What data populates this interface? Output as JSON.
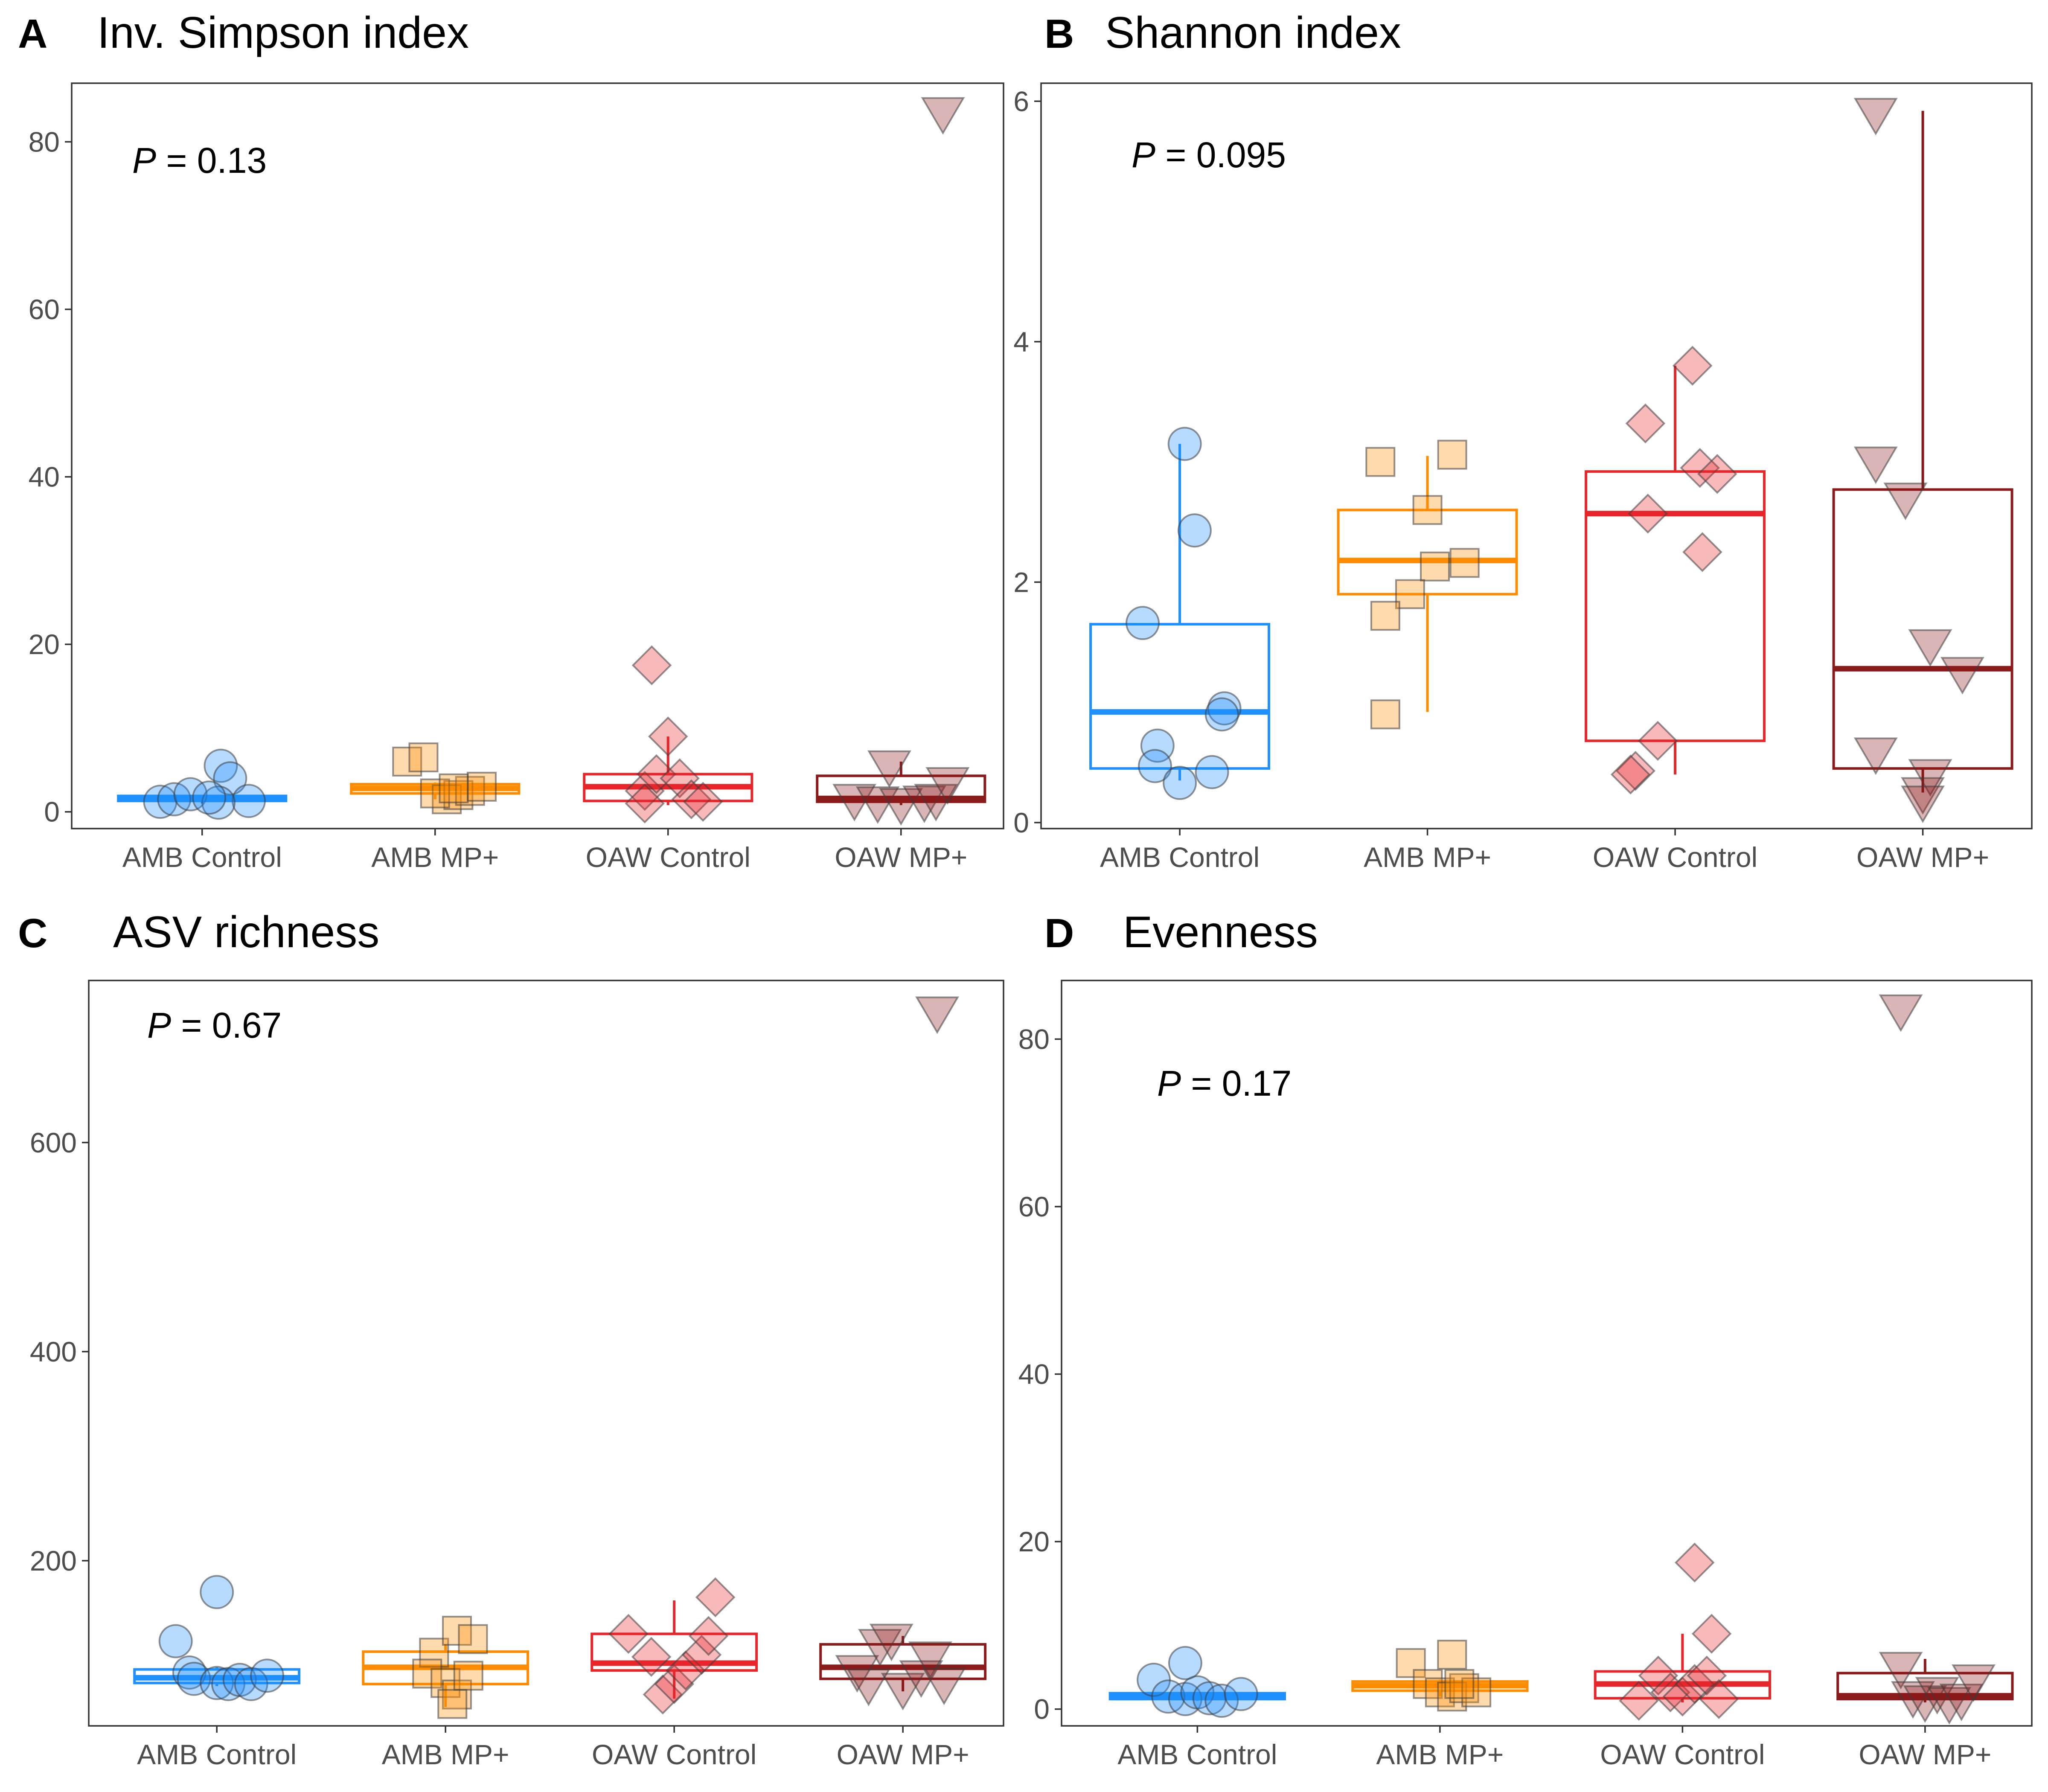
{
  "panels": [
    {
      "letter": "A",
      "title": "Inv. Simpson index"
    },
    {
      "letter": "B",
      "title": "Shannon index"
    },
    {
      "letter": "C",
      "title": "ASV richness"
    },
    {
      "letter": "D",
      "title": "Evenness"
    }
  ],
  "chart_data": [
    {
      "panel": "A",
      "type": "box",
      "title": "Inv. Simpson index",
      "categories": [
        "AMB Control",
        "AMB MP+",
        "OAW Control",
        "OAW MP+"
      ],
      "colors": [
        "#1e90ff",
        "#ff8c00",
        "#e8262a",
        "#8b1a1a"
      ],
      "point_shapes": [
        "circle",
        "square",
        "diamond",
        "triangle-down"
      ],
      "ylim": [
        -2,
        87
      ],
      "yticks": [
        0,
        20,
        40,
        60,
        80
      ],
      "annotation": {
        "P": "P",
        "text": " = 0.13"
      },
      "boxes": [
        {
          "q1": 1.3,
          "median": 1.6,
          "q3": 1.9,
          "lo": 1.0,
          "hi": 2.0
        },
        {
          "q1": 2.2,
          "median": 2.8,
          "q3": 3.3,
          "lo": 1.5,
          "hi": 3.5
        },
        {
          "q1": 1.3,
          "median": 3.0,
          "q3": 4.5,
          "lo": 0.8,
          "hi": 9.0
        },
        {
          "q1": 1.2,
          "median": 1.6,
          "q3": 4.3,
          "lo": 0.8,
          "hi": 6.0
        }
      ],
      "points": [
        [
          [
            -0.18,
            1.2
          ],
          [
            -0.12,
            1.5
          ],
          [
            -0.05,
            2.1
          ],
          [
            0.08,
            5.5
          ],
          [
            0.12,
            4.0
          ],
          [
            0.2,
            1.3
          ],
          [
            0.07,
            1.1
          ],
          [
            0.03,
            1.7
          ]
        ],
        [
          [
            -0.12,
            6.0
          ],
          [
            -0.05,
            6.5
          ],
          [
            0.05,
            1.5
          ],
          [
            0.1,
            2.0
          ],
          [
            0.15,
            2.5
          ],
          [
            0.2,
            3.0
          ],
          [
            0.0,
            2.2
          ],
          [
            0.08,
            2.8
          ]
        ],
        [
          [
            -0.1,
            2.5
          ],
          [
            -0.05,
            4.5
          ],
          [
            -0.1,
            1.0
          ],
          [
            0.0,
            9.0
          ],
          [
            0.05,
            4.0
          ],
          [
            0.1,
            1.5
          ],
          [
            0.15,
            1.2
          ],
          [
            -0.07,
            17.5
          ]
        ],
        [
          [
            -0.2,
            1.5
          ],
          [
            -0.1,
            1.2
          ],
          [
            -0.05,
            5.5
          ],
          [
            0.0,
            1.0
          ],
          [
            0.1,
            1.3
          ],
          [
            0.15,
            1.5
          ],
          [
            0.2,
            3.5
          ],
          [
            0.18,
            83.5
          ]
        ]
      ]
    },
    {
      "panel": "B",
      "type": "box",
      "title": "Shannon index",
      "categories": [
        "AMB Control",
        "AMB MP+",
        "OAW Control",
        "OAW MP+"
      ],
      "colors": [
        "#1e90ff",
        "#ff8c00",
        "#e8262a",
        "#8b1a1a"
      ],
      "point_shapes": [
        "circle",
        "square",
        "diamond",
        "triangle-down"
      ],
      "ylim": [
        -0.05,
        6.15
      ],
      "yticks": [
        0,
        2,
        4,
        6
      ],
      "annotation": {
        "P": "P",
        "text": " = 0.095"
      },
      "boxes": [
        {
          "q1": 0.45,
          "median": 0.92,
          "q3": 1.65,
          "lo": 0.35,
          "hi": 3.15
        },
        {
          "q1": 1.9,
          "median": 2.18,
          "q3": 2.6,
          "lo": 0.92,
          "hi": 3.05
        },
        {
          "q1": 0.68,
          "median": 2.57,
          "q3": 2.92,
          "lo": 0.4,
          "hi": 3.8
        },
        {
          "q1": 0.45,
          "median": 1.28,
          "q3": 2.77,
          "lo": 0.25,
          "hi": 5.92
        }
      ],
      "points": [
        [
          [
            0.02,
            3.15
          ],
          [
            0.06,
            2.43
          ],
          [
            -0.15,
            1.66
          ],
          [
            0.18,
            0.95
          ],
          [
            0.17,
            0.9
          ],
          [
            -0.09,
            0.64
          ],
          [
            -0.1,
            0.47
          ],
          [
            0.13,
            0.42
          ],
          [
            0.0,
            0.33
          ]
        ],
        [
          [
            -0.19,
            3.0
          ],
          [
            0.1,
            3.06
          ],
          [
            0.0,
            2.6
          ],
          [
            0.03,
            2.13
          ],
          [
            0.15,
            2.16
          ],
          [
            -0.07,
            1.9
          ],
          [
            -0.17,
            1.72
          ],
          [
            -0.17,
            0.9
          ]
        ],
        [
          [
            0.07,
            3.8
          ],
          [
            -0.12,
            3.32
          ],
          [
            0.1,
            2.95
          ],
          [
            0.17,
            2.9
          ],
          [
            -0.11,
            2.57
          ],
          [
            0.11,
            2.25
          ],
          [
            -0.07,
            0.68
          ],
          [
            -0.16,
            0.43
          ],
          [
            -0.18,
            0.4
          ]
        ],
        [
          [
            -0.19,
            5.9
          ],
          [
            -0.19,
            3.0
          ],
          [
            -0.07,
            2.7
          ],
          [
            0.03,
            1.48
          ],
          [
            0.16,
            1.25
          ],
          [
            -0.19,
            0.58
          ],
          [
            0.03,
            0.4
          ],
          [
            0.0,
            0.25
          ],
          [
            0.0,
            0.18
          ]
        ]
      ]
    },
    {
      "panel": "C",
      "type": "box",
      "title": "ASV richness",
      "categories": [
        "AMB Control",
        "AMB MP+",
        "OAW Control",
        "OAW MP+"
      ],
      "colors": [
        "#1e90ff",
        "#ff8c00",
        "#e8262a",
        "#8b1a1a"
      ],
      "point_shapes": [
        "circle",
        "square",
        "diamond",
        "triangle-down"
      ],
      "ylim": [
        42,
        755
      ],
      "yticks": [
        200,
        400,
        600
      ],
      "annotation": {
        "P": "P",
        "text": " = 0.67"
      },
      "boxes": [
        {
          "q1": 83,
          "median": 88,
          "q3": 96,
          "lo": 80,
          "hi": 98
        },
        {
          "q1": 82,
          "median": 98,
          "q3": 113,
          "lo": 60,
          "hi": 120
        },
        {
          "q1": 95,
          "median": 102,
          "q3": 130,
          "lo": 68,
          "hi": 162
        },
        {
          "q1": 87,
          "median": 98,
          "q3": 120,
          "lo": 75,
          "hi": 128
        }
      ],
      "points": [
        [
          [
            -0.18,
            123
          ],
          [
            -0.12,
            93
          ],
          [
            -0.1,
            87
          ],
          [
            0.0,
            83
          ],
          [
            0.05,
            82
          ],
          [
            0.1,
            86
          ],
          [
            0.15,
            82
          ],
          [
            0.0,
            170
          ],
          [
            0.22,
            90
          ]
        ],
        [
          [
            -0.05,
            112
          ],
          [
            0.05,
            133
          ],
          [
            0.12,
            125
          ],
          [
            -0.08,
            92
          ],
          [
            0.0,
            83
          ],
          [
            0.05,
            72
          ],
          [
            0.03,
            63
          ],
          [
            0.1,
            90
          ]
        ],
        [
          [
            -0.2,
            130
          ],
          [
            -0.1,
            108
          ],
          [
            -0.05,
            72
          ],
          [
            0.0,
            82
          ],
          [
            0.05,
            95
          ],
          [
            0.12,
            110
          ],
          [
            0.15,
            128
          ],
          [
            0.18,
            165
          ]
        ],
        [
          [
            -0.2,
            95
          ],
          [
            -0.15,
            82
          ],
          [
            -0.1,
            120
          ],
          [
            -0.05,
            125
          ],
          [
            0.0,
            78
          ],
          [
            0.08,
            90
          ],
          [
            0.12,
            108
          ],
          [
            0.18,
            83
          ],
          [
            0.15,
            725
          ]
        ]
      ]
    },
    {
      "panel": "D",
      "type": "box",
      "title": "Evenness",
      "categories": [
        "AMB Control",
        "AMB MP+",
        "OAW Control",
        "OAW MP+"
      ],
      "colors": [
        "#1e90ff",
        "#ff8c00",
        "#e8262a",
        "#8b1a1a"
      ],
      "point_shapes": [
        "circle",
        "square",
        "diamond",
        "triangle-down"
      ],
      "ylim": [
        -2,
        87
      ],
      "yticks": [
        0,
        20,
        40,
        60,
        80
      ],
      "annotation": {
        "P": "P",
        "text": " = 0.17"
      },
      "boxes": [
        {
          "q1": 1.2,
          "median": 1.6,
          "q3": 1.9,
          "lo": 1.0,
          "hi": 2.0
        },
        {
          "q1": 2.2,
          "median": 2.8,
          "q3": 3.3,
          "lo": 1.5,
          "hi": 3.5
        },
        {
          "q1": 1.3,
          "median": 3.0,
          "q3": 4.5,
          "lo": 0.8,
          "hi": 9.0
        },
        {
          "q1": 1.2,
          "median": 1.6,
          "q3": 4.3,
          "lo": 0.8,
          "hi": 6.0
        }
      ],
      "points": [
        [
          [
            -0.18,
            3.5
          ],
          [
            -0.12,
            1.5
          ],
          [
            -0.05,
            1.2
          ],
          [
            0.0,
            2.0
          ],
          [
            0.05,
            1.3
          ],
          [
            0.1,
            1.0
          ],
          [
            0.18,
            1.8
          ],
          [
            -0.05,
            5.5
          ]
        ],
        [
          [
            -0.12,
            5.5
          ],
          [
            0.05,
            6.5
          ],
          [
            -0.05,
            3.0
          ],
          [
            0.0,
            2.0
          ],
          [
            0.05,
            1.5
          ],
          [
            0.1,
            2.5
          ],
          [
            0.15,
            2.0
          ],
          [
            0.08,
            3.0
          ]
        ],
        [
          [
            -0.18,
            1.0
          ],
          [
            -0.1,
            4.0
          ],
          [
            -0.05,
            2.0
          ],
          [
            0.0,
            1.5
          ],
          [
            0.05,
            3.0
          ],
          [
            0.1,
            4.0
          ],
          [
            0.15,
            1.2
          ],
          [
            0.05,
            17.5
          ],
          [
            0.12,
            9.0
          ]
        ],
        [
          [
            -0.1,
            5.0
          ],
          [
            -0.05,
            1.5
          ],
          [
            0.0,
            1.0
          ],
          [
            0.05,
            2.0
          ],
          [
            0.1,
            0.8
          ],
          [
            0.15,
            1.2
          ],
          [
            0.2,
            3.5
          ],
          [
            -0.1,
            83.5
          ]
        ]
      ]
    }
  ]
}
